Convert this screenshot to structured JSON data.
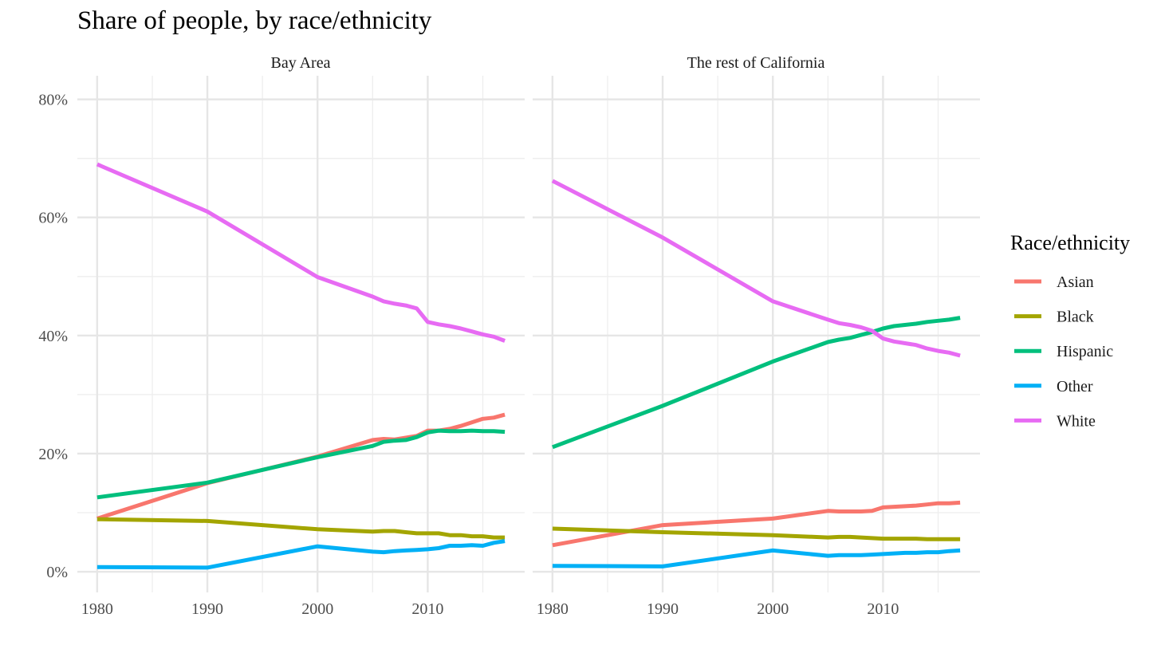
{
  "chart_data": {
    "type": "line",
    "title": "Share of people, by race/ethnicity",
    "xlabel": "",
    "ylabel": "",
    "x_ticks": [
      "1980",
      "1990",
      "2000",
      "2010"
    ],
    "y_ticks": [
      "0%",
      "20%",
      "40%",
      "60%",
      "80%"
    ],
    "xlim": [
      1978.2,
      2018.8
    ],
    "ylim": [
      -3.5,
      84
    ],
    "grid": true,
    "legend": {
      "title": "Race/ethnicity",
      "placement": "right",
      "entries": [
        {
          "name": "Asian",
          "color": "#F8766D"
        },
        {
          "name": "Black",
          "color": "#A3A500"
        },
        {
          "name": "Hispanic",
          "color": "#00BF7D"
        },
        {
          "name": "Other",
          "color": "#00B0F6"
        },
        {
          "name": "White",
          "color": "#E76BF3"
        }
      ]
    },
    "panels": [
      {
        "title": "Bay Area",
        "series": [
          {
            "name": "Asian",
            "color": "#F8766D",
            "points": [
              [
                1980,
                9.0
              ],
              [
                1990,
                15.0
              ],
              [
                2000,
                19.5
              ],
              [
                2005,
                22.3
              ],
              [
                2006,
                22.5
              ],
              [
                2007,
                22.4
              ],
              [
                2008,
                22.7
              ],
              [
                2009,
                23.0
              ],
              [
                2010,
                23.9
              ],
              [
                2011,
                23.9
              ],
              [
                2012,
                24.2
              ],
              [
                2013,
                24.7
              ],
              [
                2014,
                25.3
              ],
              [
                2015,
                25.9
              ],
              [
                2016,
                26.1
              ],
              [
                2017,
                26.6
              ]
            ]
          },
          {
            "name": "Black",
            "color": "#A3A500",
            "points": [
              [
                1980,
                8.9
              ],
              [
                1990,
                8.6
              ],
              [
                2000,
                7.2
              ],
              [
                2005,
                6.8
              ],
              [
                2006,
                6.9
              ],
              [
                2007,
                6.9
              ],
              [
                2008,
                6.7
              ],
              [
                2009,
                6.5
              ],
              [
                2010,
                6.5
              ],
              [
                2011,
                6.5
              ],
              [
                2012,
                6.2
              ],
              [
                2013,
                6.2
              ],
              [
                2014,
                6.0
              ],
              [
                2015,
                6.0
              ],
              [
                2016,
                5.8
              ],
              [
                2017,
                5.8
              ]
            ]
          },
          {
            "name": "Hispanic",
            "color": "#00BF7D",
            "points": [
              [
                1980,
                12.6
              ],
              [
                1990,
                15.1
              ],
              [
                2000,
                19.4
              ],
              [
                2005,
                21.3
              ],
              [
                2006,
                22.0
              ],
              [
                2007,
                22.2
              ],
              [
                2008,
                22.3
              ],
              [
                2009,
                22.8
              ],
              [
                2010,
                23.6
              ],
              [
                2011,
                23.9
              ],
              [
                2012,
                23.8
              ],
              [
                2013,
                23.8
              ],
              [
                2014,
                23.9
              ],
              [
                2015,
                23.8
              ],
              [
                2016,
                23.8
              ],
              [
                2017,
                23.7
              ]
            ]
          },
          {
            "name": "Other",
            "color": "#00B0F6",
            "points": [
              [
                1980,
                0.8
              ],
              [
                1990,
                0.7
              ],
              [
                2000,
                4.3
              ],
              [
                2005,
                3.4
              ],
              [
                2006,
                3.3
              ],
              [
                2007,
                3.5
              ],
              [
                2008,
                3.6
              ],
              [
                2009,
                3.7
              ],
              [
                2010,
                3.8
              ],
              [
                2011,
                4.0
              ],
              [
                2012,
                4.4
              ],
              [
                2013,
                4.4
              ],
              [
                2014,
                4.5
              ],
              [
                2015,
                4.4
              ],
              [
                2016,
                4.9
              ],
              [
                2017,
                5.2
              ]
            ]
          },
          {
            "name": "White",
            "color": "#E76BF3",
            "points": [
              [
                1980,
                69.0
              ],
              [
                1990,
                61.0
              ],
              [
                2000,
                49.9
              ],
              [
                2005,
                46.6
              ],
              [
                2006,
                45.8
              ],
              [
                2007,
                45.4
              ],
              [
                2008,
                45.1
              ],
              [
                2009,
                44.6
              ],
              [
                2010,
                42.3
              ],
              [
                2011,
                41.9
              ],
              [
                2012,
                41.6
              ],
              [
                2013,
                41.2
              ],
              [
                2014,
                40.7
              ],
              [
                2015,
                40.2
              ],
              [
                2016,
                39.8
              ],
              [
                2017,
                39.1
              ]
            ]
          }
        ]
      },
      {
        "title": "The rest of California",
        "series": [
          {
            "name": "Asian",
            "color": "#F8766D",
            "points": [
              [
                1980,
                4.5
              ],
              [
                1990,
                7.9
              ],
              [
                2000,
                9.0
              ],
              [
                2005,
                10.3
              ],
              [
                2006,
                10.2
              ],
              [
                2007,
                10.2
              ],
              [
                2008,
                10.2
              ],
              [
                2009,
                10.3
              ],
              [
                2010,
                10.9
              ],
              [
                2011,
                11.0
              ],
              [
                2012,
                11.1
              ],
              [
                2013,
                11.2
              ],
              [
                2014,
                11.4
              ],
              [
                2015,
                11.6
              ],
              [
                2016,
                11.6
              ],
              [
                2017,
                11.7
              ]
            ]
          },
          {
            "name": "Black",
            "color": "#A3A500",
            "points": [
              [
                1980,
                7.3
              ],
              [
                1990,
                6.7
              ],
              [
                2000,
                6.2
              ],
              [
                2005,
                5.8
              ],
              [
                2006,
                5.9
              ],
              [
                2007,
                5.9
              ],
              [
                2008,
                5.8
              ],
              [
                2009,
                5.7
              ],
              [
                2010,
                5.6
              ],
              [
                2011,
                5.6
              ],
              [
                2012,
                5.6
              ],
              [
                2013,
                5.6
              ],
              [
                2014,
                5.5
              ],
              [
                2015,
                5.5
              ],
              [
                2016,
                5.5
              ],
              [
                2017,
                5.5
              ]
            ]
          },
          {
            "name": "Hispanic",
            "color": "#00BF7D",
            "points": [
              [
                1980,
                21.1
              ],
              [
                1990,
                28.1
              ],
              [
                2000,
                35.6
              ],
              [
                2005,
                38.9
              ],
              [
                2006,
                39.3
              ],
              [
                2007,
                39.6
              ],
              [
                2008,
                40.1
              ],
              [
                2009,
                40.6
              ],
              [
                2010,
                41.2
              ],
              [
                2011,
                41.6
              ],
              [
                2012,
                41.8
              ],
              [
                2013,
                42.0
              ],
              [
                2014,
                42.3
              ],
              [
                2015,
                42.5
              ],
              [
                2016,
                42.7
              ],
              [
                2017,
                43.0
              ]
            ]
          },
          {
            "name": "Other",
            "color": "#00B0F6",
            "points": [
              [
                1980,
                1.0
              ],
              [
                1990,
                0.9
              ],
              [
                2000,
                3.6
              ],
              [
                2005,
                2.7
              ],
              [
                2006,
                2.8
              ],
              [
                2007,
                2.8
              ],
              [
                2008,
                2.8
              ],
              [
                2009,
                2.9
              ],
              [
                2010,
                3.0
              ],
              [
                2011,
                3.1
              ],
              [
                2012,
                3.2
              ],
              [
                2013,
                3.2
              ],
              [
                2014,
                3.3
              ],
              [
                2015,
                3.3
              ],
              [
                2016,
                3.5
              ],
              [
                2017,
                3.6
              ]
            ]
          },
          {
            "name": "White",
            "color": "#E76BF3",
            "points": [
              [
                1980,
                66.2
              ],
              [
                1990,
                56.6
              ],
              [
                2000,
                45.8
              ],
              [
                2005,
                42.7
              ],
              [
                2006,
                42.1
              ],
              [
                2007,
                41.8
              ],
              [
                2008,
                41.4
              ],
              [
                2009,
                40.8
              ],
              [
                2010,
                39.5
              ],
              [
                2011,
                39.0
              ],
              [
                2012,
                38.7
              ],
              [
                2013,
                38.4
              ],
              [
                2014,
                37.8
              ],
              [
                2015,
                37.4
              ],
              [
                2016,
                37.1
              ],
              [
                2017,
                36.6
              ]
            ]
          }
        ]
      }
    ]
  }
}
